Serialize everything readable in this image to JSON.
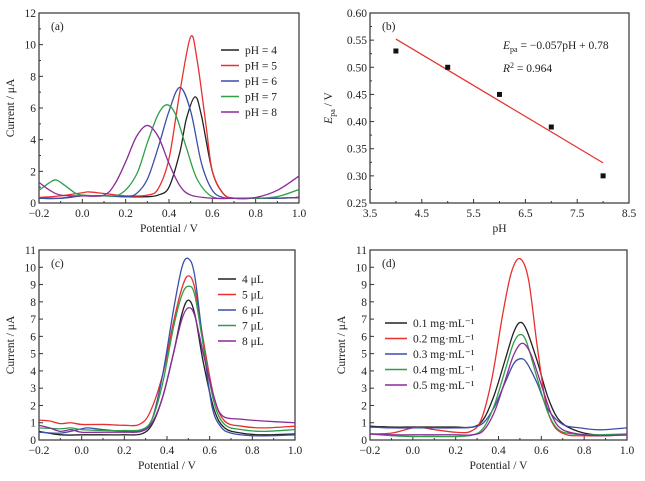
{
  "chart_data": [
    {
      "id": "a",
      "type": "line",
      "panel_label": "(a)",
      "xlabel": "Potential / V",
      "ylabel": "Current / μA",
      "xlim": [
        -0.2,
        1.0
      ],
      "ylim": [
        0,
        12
      ],
      "xticks": [
        -0.2,
        0.0,
        0.2,
        0.4,
        0.6,
        0.8,
        1.0
      ],
      "xtick_labels": [
        "−0.2",
        "0.0",
        "0.2",
        "0.4",
        "0.6",
        "0.8",
        "1.0"
      ],
      "yticks": [
        0,
        2,
        4,
        6,
        8,
        10,
        12
      ],
      "ytick_labels": [
        "0",
        "2",
        "4",
        "6",
        "8",
        "10",
        "12"
      ],
      "legend_position": "top-right",
      "series": [
        {
          "name": "pH = 4",
          "color": "#222222",
          "x": [
            -0.2,
            -0.1,
            0.0,
            0.1,
            0.2,
            0.3,
            0.35,
            0.4,
            0.45,
            0.48,
            0.52,
            0.55,
            0.6,
            0.65,
            0.7,
            0.8,
            0.9,
            1.0
          ],
          "y": [
            0.3,
            0.3,
            0.45,
            0.45,
            0.4,
            0.4,
            0.5,
            1.0,
            3.2,
            5.3,
            6.7,
            5.5,
            2.0,
            0.6,
            0.3,
            0.3,
            0.3,
            0.35
          ]
        },
        {
          "name": "pH = 5",
          "color": "#e8302e",
          "x": [
            -0.2,
            -0.1,
            0.0,
            0.03,
            0.1,
            0.2,
            0.3,
            0.35,
            0.4,
            0.45,
            0.5,
            0.53,
            0.57,
            0.6,
            0.65,
            0.7,
            0.8,
            0.9,
            1.0
          ],
          "y": [
            0.35,
            0.45,
            0.65,
            0.7,
            0.6,
            0.45,
            0.5,
            0.9,
            2.8,
            7.0,
            10.5,
            9.0,
            5.0,
            2.0,
            0.6,
            0.3,
            0.3,
            0.3,
            0.35
          ]
        },
        {
          "name": "pH = 6",
          "color": "#3a4fa8",
          "x": [
            -0.2,
            -0.1,
            0.0,
            0.1,
            0.2,
            0.25,
            0.3,
            0.35,
            0.4,
            0.45,
            0.5,
            0.55,
            0.6,
            0.65,
            0.7,
            0.8,
            0.9,
            1.0
          ],
          "y": [
            0.3,
            0.3,
            0.45,
            0.45,
            0.4,
            0.6,
            1.5,
            3.5,
            5.8,
            7.3,
            5.8,
            2.5,
            0.8,
            0.35,
            0.3,
            0.3,
            0.3,
            0.35
          ]
        },
        {
          "name": "pH = 7",
          "color": "#2f9e4a",
          "x": [
            -0.2,
            -0.15,
            -0.12,
            -0.08,
            -0.03,
            0.0,
            0.1,
            0.18,
            0.25,
            0.3,
            0.35,
            0.39,
            0.43,
            0.48,
            0.53,
            0.6,
            0.7,
            0.8,
            0.9,
            1.0
          ],
          "y": [
            0.8,
            1.3,
            1.45,
            1.1,
            0.6,
            0.5,
            0.45,
            0.6,
            1.8,
            3.8,
            5.6,
            6.2,
            5.6,
            3.5,
            1.5,
            0.4,
            0.3,
            0.3,
            0.4,
            0.85
          ]
        },
        {
          "name": "pH = 8",
          "color": "#8b2a9a",
          "x": [
            -0.2,
            -0.15,
            -0.1,
            0.0,
            0.1,
            0.15,
            0.2,
            0.25,
            0.3,
            0.35,
            0.4,
            0.45,
            0.5,
            0.6,
            0.7,
            0.8,
            0.9,
            1.0
          ],
          "y": [
            1.3,
            0.8,
            0.5,
            0.45,
            0.5,
            1.2,
            2.6,
            4.2,
            4.9,
            4.2,
            2.5,
            1.1,
            0.5,
            0.3,
            0.3,
            0.35,
            0.8,
            1.7
          ]
        }
      ]
    },
    {
      "id": "b",
      "type": "scatter",
      "panel_label": "(b)",
      "xlabel": "pH",
      "ylabel_main": "E",
      "ylabel_sub": "pa",
      "ylabel_unit": " / V",
      "xlim": [
        3.5,
        8.5
      ],
      "ylim": [
        0.25,
        0.6
      ],
      "xticks": [
        3.5,
        4.5,
        5.5,
        6.5,
        7.5,
        8.5
      ],
      "xtick_labels": [
        "3.5",
        "4.5",
        "5.5",
        "6.5",
        "7.5",
        "8.5"
      ],
      "yticks": [
        0.25,
        0.3,
        0.35,
        0.4,
        0.45,
        0.5,
        0.55,
        0.6
      ],
      "ytick_labels": [
        "0.25",
        "0.30",
        "0.35",
        "0.40",
        "0.45",
        "0.50",
        "0.55",
        "0.60"
      ],
      "points": {
        "x": [
          4,
          5,
          6,
          7,
          8
        ],
        "y": [
          0.53,
          0.5,
          0.45,
          0.39,
          0.3
        ],
        "color": "#111111"
      },
      "fit": {
        "slope": -0.057,
        "intercept": 0.78,
        "x_range": [
          4,
          8
        ],
        "color": "#e8302e"
      },
      "annotation": {
        "eq_lhs_main": "E",
        "eq_lhs_sub": "pa",
        "eq_rhs": " = −0.057pH + 0.78",
        "r2_main": "R",
        "r2_sup": "2",
        "r2_rhs": " = 0.964"
      }
    },
    {
      "id": "c",
      "type": "line",
      "panel_label": "(c)",
      "xlabel": "Potential / V",
      "ylabel": "Current / μA",
      "xlim": [
        -0.2,
        1.0
      ],
      "ylim": [
        0,
        11
      ],
      "xticks": [
        -0.2,
        0.0,
        0.2,
        0.4,
        0.6,
        0.8,
        1.0
      ],
      "xtick_labels": [
        "−0.2",
        "0.0",
        "0.2",
        "0.4",
        "0.6",
        "0.8",
        "1.0"
      ],
      "yticks": [
        0,
        1,
        2,
        3,
        4,
        5,
        6,
        7,
        8,
        9,
        10,
        11
      ],
      "ytick_labels": [
        "0",
        "1",
        "2",
        "3",
        "4",
        "5",
        "6",
        "7",
        "8",
        "9",
        "10",
        "11"
      ],
      "legend_position": "top-right",
      "series": [
        {
          "name": "4 μL",
          "color": "#222222",
          "x": [
            -0.2,
            -0.1,
            0.0,
            0.1,
            0.2,
            0.28,
            0.33,
            0.38,
            0.43,
            0.47,
            0.5,
            0.53,
            0.57,
            0.62,
            0.67,
            0.75,
            0.85,
            1.0
          ],
          "y": [
            0.5,
            0.3,
            0.3,
            0.3,
            0.3,
            0.35,
            0.9,
            2.5,
            5.0,
            7.3,
            8.1,
            7.3,
            4.5,
            1.8,
            0.7,
            0.4,
            0.3,
            0.35
          ]
        },
        {
          "name": "5 μL",
          "color": "#e8302e",
          "x": [
            -0.2,
            -0.15,
            -0.1,
            -0.05,
            0.0,
            0.1,
            0.2,
            0.27,
            0.32,
            0.38,
            0.43,
            0.47,
            0.5,
            0.53,
            0.57,
            0.62,
            0.67,
            0.75,
            0.85,
            1.0
          ],
          "y": [
            1.15,
            1.1,
            0.95,
            1.0,
            0.9,
            0.9,
            0.85,
            0.9,
            1.6,
            3.8,
            6.8,
            8.8,
            9.5,
            8.8,
            5.8,
            2.5,
            1.1,
            0.8,
            0.7,
            0.8
          ]
        },
        {
          "name": "6 μL",
          "color": "#3a4fa8",
          "x": [
            -0.2,
            -0.1,
            0.0,
            0.03,
            0.1,
            0.2,
            0.28,
            0.33,
            0.38,
            0.43,
            0.47,
            0.5,
            0.53,
            0.57,
            0.61,
            0.65,
            0.7,
            0.8,
            0.9,
            1.0
          ],
          "y": [
            0.45,
            0.4,
            0.65,
            0.7,
            0.6,
            0.5,
            0.55,
            1.2,
            3.8,
            7.5,
            10.0,
            10.5,
            9.5,
            5.5,
            2.0,
            0.8,
            0.4,
            0.25,
            0.25,
            0.3
          ]
        },
        {
          "name": "7 μL",
          "color": "#2f9e4a",
          "x": [
            -0.2,
            -0.1,
            -0.05,
            0.0,
            0.1,
            0.2,
            0.28,
            0.33,
            0.38,
            0.43,
            0.47,
            0.5,
            0.53,
            0.57,
            0.62,
            0.67,
            0.75,
            0.85,
            1.0
          ],
          "y": [
            0.7,
            0.65,
            0.7,
            0.6,
            0.55,
            0.55,
            0.6,
            1.2,
            3.3,
            6.5,
            8.4,
            8.9,
            8.4,
            5.5,
            2.2,
            0.9,
            0.6,
            0.5,
            0.6
          ]
        },
        {
          "name": "8 μL",
          "color": "#8b2a9a",
          "x": [
            -0.2,
            -0.15,
            -0.1,
            -0.05,
            0.0,
            0.1,
            0.2,
            0.28,
            0.33,
            0.38,
            0.43,
            0.47,
            0.5,
            0.53,
            0.57,
            0.62,
            0.66,
            0.75,
            0.85,
            1.0
          ],
          "y": [
            0.85,
            0.7,
            0.5,
            0.6,
            0.45,
            0.45,
            0.45,
            0.5,
            1.0,
            2.5,
            5.0,
            7.0,
            7.65,
            7.2,
            5.0,
            2.5,
            1.4,
            1.2,
            1.1,
            1.0
          ]
        }
      ]
    },
    {
      "id": "d",
      "type": "line",
      "panel_label": "(d)",
      "xlabel": "Potential / V",
      "ylabel": "Current / μA",
      "xlim": [
        -0.2,
        1.0
      ],
      "ylim": [
        0,
        11
      ],
      "xticks": [
        -0.2,
        0.0,
        0.2,
        0.4,
        0.6,
        0.8,
        1.0
      ],
      "xtick_labels": [
        "−0.2",
        "0.0",
        "0.2",
        "0.4",
        "0.6",
        "0.8",
        "1.0"
      ],
      "yticks": [
        0,
        1,
        2,
        3,
        4,
        5,
        6,
        7,
        8,
        9,
        10,
        11
      ],
      "ytick_labels": [
        "0",
        "1",
        "2",
        "3",
        "4",
        "5",
        "6",
        "7",
        "8",
        "9",
        "10",
        "11"
      ],
      "legend_position": "center-left",
      "series": [
        {
          "name": "0.1 mg·mL⁻¹",
          "color": "#222222",
          "x": [
            -0.2,
            -0.1,
            0.0,
            0.1,
            0.2,
            0.28,
            0.33,
            0.38,
            0.43,
            0.47,
            0.5,
            0.53,
            0.58,
            0.63,
            0.68,
            0.75,
            0.85,
            1.0
          ],
          "y": [
            0.8,
            0.75,
            0.75,
            0.75,
            0.75,
            0.75,
            1.2,
            2.6,
            4.6,
            6.2,
            6.8,
            6.4,
            4.6,
            2.5,
            1.2,
            0.6,
            0.3,
            0.3
          ]
        },
        {
          "name": "0.2 mg·mL⁻¹",
          "color": "#e8302e",
          "x": [
            -0.2,
            -0.1,
            0.0,
            0.05,
            0.1,
            0.2,
            0.27,
            0.32,
            0.37,
            0.42,
            0.46,
            0.5,
            0.54,
            0.58,
            0.62,
            0.66,
            0.72,
            0.8,
            0.9,
            1.0
          ],
          "y": [
            0.35,
            0.4,
            0.7,
            0.7,
            0.6,
            0.45,
            0.5,
            1.2,
            3.6,
            7.3,
            9.7,
            10.5,
            9.3,
            5.5,
            2.2,
            0.8,
            0.3,
            0.25,
            0.25,
            0.3
          ]
        },
        {
          "name": "0.3 mg·mL⁻¹",
          "color": "#3a4fa8",
          "x": [
            -0.2,
            -0.1,
            0.0,
            0.1,
            0.2,
            0.28,
            0.33,
            0.38,
            0.43,
            0.47,
            0.5,
            0.53,
            0.58,
            0.63,
            0.7,
            0.78,
            0.85,
            0.9,
            1.0
          ],
          "y": [
            0.75,
            0.7,
            0.7,
            0.7,
            0.7,
            0.75,
            1.0,
            1.9,
            3.3,
            4.4,
            4.7,
            4.5,
            3.3,
            1.8,
            0.9,
            0.7,
            0.6,
            0.6,
            0.7
          ]
        },
        {
          "name": "0.4 mg·mL⁻¹",
          "color": "#2f9e4a",
          "x": [
            -0.2,
            -0.1,
            0.0,
            0.1,
            0.2,
            0.28,
            0.33,
            0.38,
            0.43,
            0.47,
            0.5,
            0.53,
            0.58,
            0.63,
            0.68,
            0.75,
            0.85,
            1.0
          ],
          "y": [
            0.35,
            0.25,
            0.2,
            0.2,
            0.2,
            0.3,
            0.7,
            2.0,
            4.0,
            5.6,
            6.1,
            5.7,
            3.6,
            1.6,
            0.6,
            0.35,
            0.3,
            0.35
          ]
        },
        {
          "name": "0.5 mg·mL⁻¹",
          "color": "#8b2a9a",
          "x": [
            -0.2,
            -0.1,
            0.0,
            0.1,
            0.2,
            0.28,
            0.33,
            0.38,
            0.43,
            0.47,
            0.51,
            0.55,
            0.6,
            0.65,
            0.7,
            0.8,
            0.9,
            1.0
          ],
          "y": [
            0.35,
            0.3,
            0.3,
            0.3,
            0.3,
            0.3,
            0.55,
            1.6,
            3.4,
            4.9,
            5.6,
            5.0,
            3.2,
            1.4,
            0.6,
            0.3,
            0.25,
            0.3
          ]
        }
      ]
    }
  ]
}
